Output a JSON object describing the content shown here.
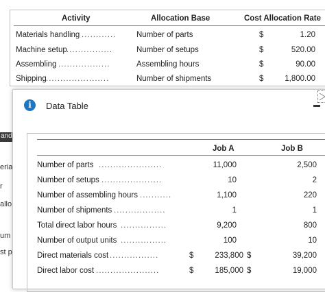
{
  "allocation_table": {
    "headers": {
      "activity": "Activity",
      "base": "Allocation Base",
      "rate": "Cost Allocation Rate"
    },
    "rows": [
      {
        "activity": "Materials handling",
        "base": "Number of parts",
        "currency": "$",
        "rate": "1.20"
      },
      {
        "activity": "Machine setup",
        "base": "Number of setups",
        "currency": "$",
        "rate": "520.00"
      },
      {
        "activity": "Assembling",
        "base": "Assembling hours",
        "currency": "$",
        "rate": "90.00"
      },
      {
        "activity": "Shipping",
        "base": "Number of shipments",
        "currency": "$",
        "rate": "1,800.00"
      }
    ]
  },
  "background_sliver": {
    "header": "and",
    "fragments": [
      "eria",
      "r",
      "allo",
      "um",
      "st p"
    ]
  },
  "dialog": {
    "title": "Data Table",
    "info_icon_glyph": "i",
    "info_icon": "info-icon",
    "minimize_icon": "minimize-icon",
    "close_icon": "close-icon",
    "accent_color": "#1b76c5"
  },
  "data_table": {
    "columns": [
      "Job A",
      "Job B"
    ],
    "rows": [
      {
        "label": "Number of parts",
        "cur_a": "",
        "job_a": "11,000",
        "cur_b": "",
        "job_b": "2,500"
      },
      {
        "label": "Number of setups",
        "cur_a": "",
        "job_a": "10",
        "cur_b": "",
        "job_b": "2"
      },
      {
        "label": "Number of assembling hours",
        "cur_a": "",
        "job_a": "1,100",
        "cur_b": "",
        "job_b": "220"
      },
      {
        "label": "Number of shipments",
        "cur_a": "",
        "job_a": "1",
        "cur_b": "",
        "job_b": "1"
      },
      {
        "label": "Total direct labor hours",
        "cur_a": "",
        "job_a": "9,200",
        "cur_b": "",
        "job_b": "800"
      },
      {
        "label": "Number of output units",
        "cur_a": "",
        "job_a": "100",
        "cur_b": "",
        "job_b": "10"
      },
      {
        "label": "Direct materials cost",
        "cur_a": "$",
        "job_a": "233,800",
        "cur_b": "$",
        "job_b": "39,200"
      },
      {
        "label": "Direct labor cost",
        "cur_a": "$",
        "job_a": "185,000",
        "cur_b": "$",
        "job_b": "19,000"
      }
    ]
  }
}
